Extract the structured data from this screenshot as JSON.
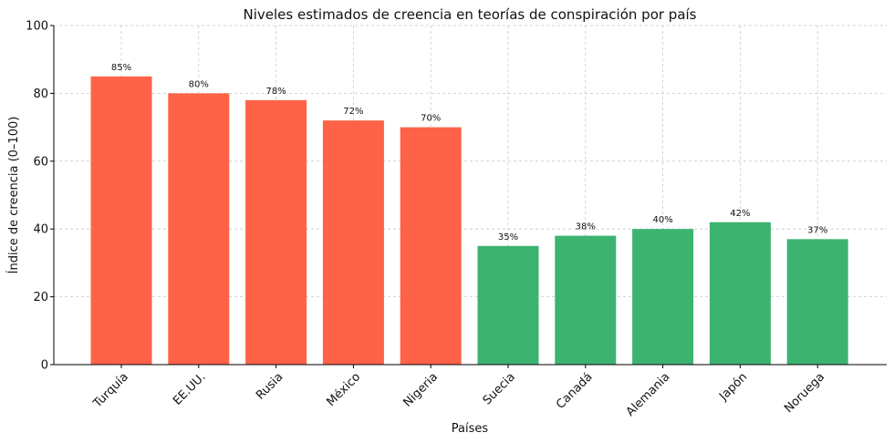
{
  "chart_data": {
    "type": "bar",
    "title": "Niveles estimados de creencia en teorías de conspiración por país",
    "xlabel": "Países",
    "ylabel": "Índice de creencia (0–100)",
    "ylim": [
      0,
      100
    ],
    "yticks": [
      0,
      20,
      40,
      60,
      80,
      100
    ],
    "grid": true,
    "categories": [
      "Turquía",
      "EE.UU.",
      "Rusia",
      "México",
      "Nigeria",
      "Suecia",
      "Canadá",
      "Alemania",
      "Japón",
      "Noruega"
    ],
    "values": [
      85,
      80,
      78,
      72,
      70,
      35,
      38,
      40,
      42,
      37
    ],
    "data_labels": [
      "85%",
      "80%",
      "78%",
      "72%",
      "70%",
      "35%",
      "38%",
      "40%",
      "42%",
      "37%"
    ],
    "bar_colors": [
      "#ff6347",
      "#ff6347",
      "#ff6347",
      "#ff6347",
      "#ff6347",
      "#3cb371",
      "#3cb371",
      "#3cb371",
      "#3cb371",
      "#3cb371"
    ]
  }
}
